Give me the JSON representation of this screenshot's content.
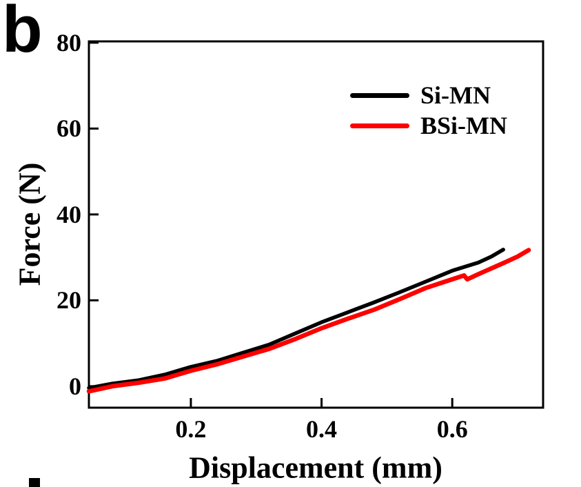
{
  "panel_label": "b",
  "chart_data": {
    "type": "line",
    "title": "",
    "xlabel": "Displacement (mm)",
    "ylabel": "Force (N)",
    "xlim": [
      0.044,
      0.739
    ],
    "ylim": [
      -5,
      80.3
    ],
    "xticks": [
      0.2,
      0.4,
      0.6
    ],
    "xtick_labels": [
      "0.2",
      "0.4",
      "0.6"
    ],
    "yticks": [
      0,
      20,
      40,
      60,
      80
    ],
    "ytick_labels": [
      "0",
      "20",
      "40",
      "60",
      "80"
    ],
    "grid": false,
    "frame": "full-box",
    "tick_direction": "in",
    "legend_position": "upper-right-inside",
    "axis_color": "#000000",
    "series": [
      {
        "name": "Si-MN",
        "color": "#000000",
        "line_width": 5.5,
        "points": [
          [
            0.044,
            -0.4
          ],
          [
            0.08,
            0.6
          ],
          [
            0.12,
            1.4
          ],
          [
            0.16,
            2.7
          ],
          [
            0.2,
            4.5
          ],
          [
            0.24,
            5.9
          ],
          [
            0.28,
            7.8
          ],
          [
            0.32,
            9.7
          ],
          [
            0.36,
            12.3
          ],
          [
            0.4,
            14.9
          ],
          [
            0.44,
            17.2
          ],
          [
            0.48,
            19.5
          ],
          [
            0.52,
            21.9
          ],
          [
            0.56,
            24.4
          ],
          [
            0.6,
            26.9
          ],
          [
            0.64,
            28.8
          ],
          [
            0.66,
            30.2
          ],
          [
            0.678,
            31.8
          ]
        ]
      },
      {
        "name": "BSi-MN",
        "color": "#fe0000",
        "line_width": 6.5,
        "points": [
          [
            0.044,
            -1.2
          ],
          [
            0.08,
            0.0
          ],
          [
            0.12,
            0.8
          ],
          [
            0.16,
            1.8
          ],
          [
            0.2,
            3.6
          ],
          [
            0.24,
            5.1
          ],
          [
            0.28,
            6.9
          ],
          [
            0.32,
            8.7
          ],
          [
            0.36,
            11.0
          ],
          [
            0.4,
            13.5
          ],
          [
            0.44,
            15.7
          ],
          [
            0.48,
            17.8
          ],
          [
            0.52,
            20.3
          ],
          [
            0.56,
            22.9
          ],
          [
            0.6,
            24.9
          ],
          [
            0.618,
            25.8
          ],
          [
            0.623,
            24.9
          ],
          [
            0.64,
            26.1
          ],
          [
            0.68,
            28.8
          ],
          [
            0.7,
            30.2
          ],
          [
            0.717,
            31.7
          ]
        ]
      }
    ]
  }
}
